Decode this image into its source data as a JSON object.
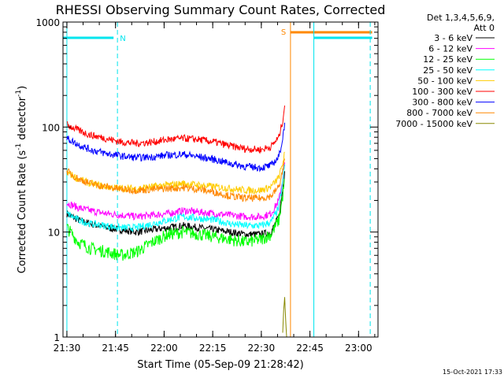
{
  "chart_data": {
    "type": "line",
    "title": "RHESSI Observing Summary Count Rates, Corrected",
    "xlabel": "Start Time (05-Sep-09 21:28:42)",
    "ylabel_main": "Corrected Count Rate (s",
    "ylabel_sup1": "-1",
    "ylabel_mid": " detector",
    "ylabel_sup2": "-1",
    "ylabel_end": ")",
    "y_scale": "log",
    "ylim": [
      1,
      1000
    ],
    "xlim_minutes": [
      21.48,
      23.1
    ],
    "x_ticks": [
      {
        "label": "21:30",
        "value": 21.5
      },
      {
        "label": "21:45",
        "value": 21.75
      },
      {
        "label": "22:00",
        "value": 22.0
      },
      {
        "label": "22:15",
        "value": 22.25
      },
      {
        "label": "22:30",
        "value": 22.5
      },
      {
        "label": "22:45",
        "value": 22.75
      },
      {
        "label": "23:00",
        "value": 23.0
      }
    ],
    "y_ticks": [
      {
        "label": "1",
        "value": 1
      },
      {
        "label": "10",
        "value": 10
      },
      {
        "label": "100",
        "value": 100
      },
      {
        "label": "1000",
        "value": 1000
      }
    ],
    "legend_header": [
      "Det 1,3,4,5,6,9,",
      "Att 0"
    ],
    "legend_position": "right",
    "series": [
      {
        "name": "3 - 6 keV",
        "color": "#000000",
        "x": [
          21.5,
          21.56,
          21.62,
          21.7,
          21.78,
          21.86,
          21.94,
          22.02,
          22.1,
          22.18,
          22.26,
          22.34,
          22.42,
          22.5,
          22.55,
          22.59,
          22.61,
          22.62
        ],
        "y": [
          15,
          13,
          12,
          11,
          10.5,
          10,
          10.5,
          11,
          11.5,
          11,
          10.5,
          10,
          9.5,
          9.5,
          10,
          14,
          25,
          38
        ]
      },
      {
        "name": "6 - 12 keV",
        "color": "#ff00ff",
        "x": [
          21.5,
          21.56,
          21.62,
          21.7,
          21.78,
          21.86,
          21.94,
          22.02,
          22.1,
          22.18,
          22.26,
          22.34,
          22.42,
          22.5,
          22.55,
          22.59,
          22.61,
          22.62
        ],
        "y": [
          19,
          17,
          16,
          15,
          14.5,
          14,
          14.5,
          15,
          16,
          15.5,
          15,
          14.5,
          14,
          14,
          15,
          20,
          32,
          46
        ]
      },
      {
        "name": "12 - 25 keV",
        "color": "#00ff00",
        "x": [
          21.5,
          21.56,
          21.62,
          21.7,
          21.78,
          21.86,
          21.94,
          22.02,
          22.1,
          22.18,
          22.26,
          22.34,
          22.42,
          22.5,
          22.55,
          22.59,
          22.61,
          22.62
        ],
        "y": [
          11,
          8,
          7,
          6.5,
          6,
          6.5,
          8,
          9.5,
          10,
          9.5,
          9,
          8.5,
          8,
          8.5,
          9.5,
          13,
          22,
          32
        ]
      },
      {
        "name": "25 - 50 keV",
        "color": "#00ffff",
        "x": [
          21.5,
          21.56,
          21.62,
          21.7,
          21.78,
          21.86,
          21.94,
          22.02,
          22.1,
          22.18,
          22.26,
          22.34,
          22.42,
          22.5,
          22.55,
          22.59,
          22.61,
          22.62
        ],
        "y": [
          15,
          13,
          12,
          11.5,
          11,
          11,
          12,
          13,
          14,
          13.5,
          13,
          12,
          11.5,
          11.5,
          12.5,
          17,
          30,
          44
        ]
      },
      {
        "name": "50 - 100 keV",
        "color": "#ffcc00",
        "x": [
          21.5,
          21.56,
          21.62,
          21.7,
          21.78,
          21.86,
          21.94,
          22.02,
          22.1,
          22.18,
          22.26,
          22.34,
          22.42,
          22.5,
          22.55,
          22.59,
          22.61,
          22.62
        ],
        "y": [
          37,
          32,
          29,
          27,
          26,
          26,
          27,
          28,
          29,
          28,
          27,
          26,
          25,
          25,
          27,
          33,
          45,
          58
        ]
      },
      {
        "name": "100 - 300 keV",
        "color": "#ff0000",
        "x": [
          21.5,
          21.56,
          21.62,
          21.7,
          21.78,
          21.86,
          21.94,
          22.02,
          22.1,
          22.18,
          22.26,
          22.34,
          22.42,
          22.5,
          22.55,
          22.59,
          22.61,
          22.62
        ],
        "y": [
          105,
          93,
          84,
          78,
          72,
          70,
          72,
          76,
          78,
          76,
          72,
          66,
          62,
          61,
          65,
          80,
          115,
          160
        ]
      },
      {
        "name": "300 - 800 keV",
        "color": "#0000ff",
        "x": [
          21.5,
          21.56,
          21.62,
          21.7,
          21.78,
          21.86,
          21.94,
          22.02,
          22.1,
          22.18,
          22.26,
          22.34,
          22.42,
          22.5,
          22.55,
          22.59,
          22.61,
          22.62
        ],
        "y": [
          78,
          68,
          61,
          56,
          53,
          51,
          52,
          54,
          55,
          52,
          49,
          45,
          42,
          41,
          43,
          52,
          78,
          110
        ]
      },
      {
        "name": "800 - 7000 keV",
        "color": "#ff8800",
        "x": [
          21.5,
          21.56,
          21.62,
          21.7,
          21.78,
          21.86,
          21.94,
          22.02,
          22.1,
          22.18,
          22.26,
          22.34,
          22.42,
          22.5,
          22.55,
          22.59,
          22.61,
          22.62
        ],
        "y": [
          38,
          32,
          29,
          27,
          25.5,
          25,
          25.5,
          26,
          26.5,
          25.5,
          24,
          22,
          21,
          21,
          22,
          27,
          38,
          50
        ]
      },
      {
        "name": "7000 - 15000 keV",
        "color": "#888800",
        "x": [
          22.61,
          22.615,
          22.62,
          22.625,
          22.63
        ],
        "y": [
          1.1,
          1.8,
          2.4,
          1.5,
          1.0
        ]
      }
    ],
    "flags": [
      {
        "label": "N",
        "color": "#00e5ee",
        "segments": [
          [
            21.48,
            21.74
          ]
        ],
        "dashed_end": 21.76
      },
      {
        "label": "S",
        "color": "#ff8800",
        "segments": [
          [
            22.65,
            23.07
          ]
        ],
        "solid_line": 22.65
      },
      {
        "label": "",
        "color": "#00e5ee",
        "segments": [
          [
            22.77,
            23.07
          ]
        ],
        "solid_line": 22.77,
        "dashed_end": 23.06
      }
    ]
  },
  "footer_timestamp": "15-Oct-2021 17:33"
}
